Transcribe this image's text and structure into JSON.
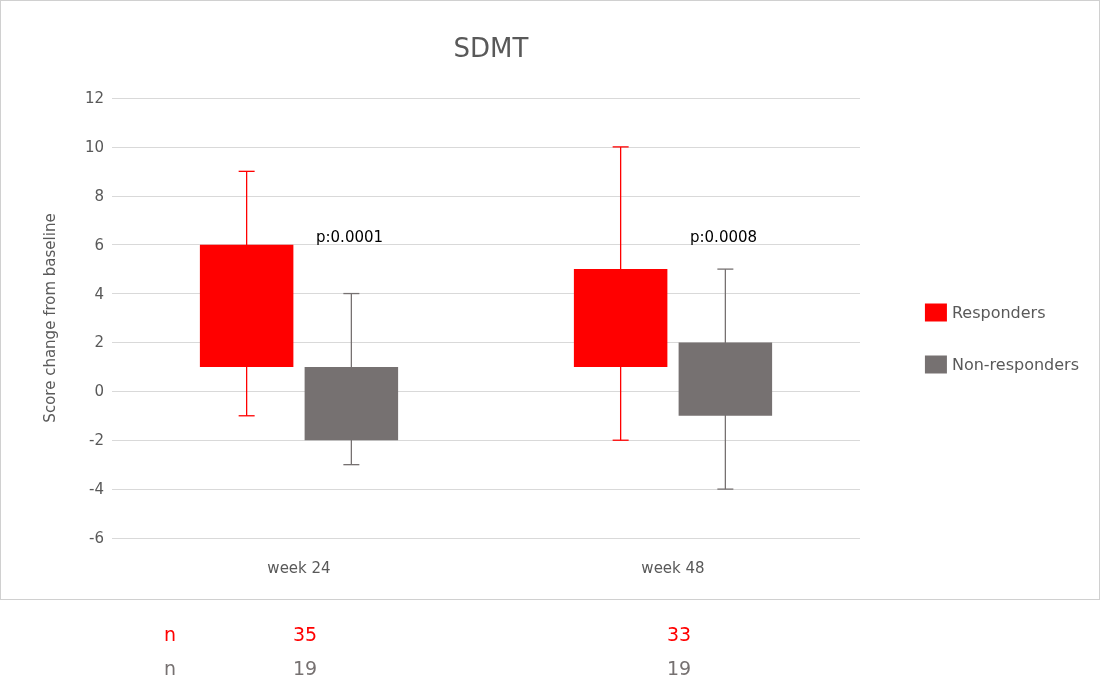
{
  "chart_data": {
    "type": "bar",
    "title": "SDMT",
    "ylabel": "Score change from baseline",
    "categories": [
      "week 24",
      "week 48"
    ],
    "series": [
      {
        "name": "Responders",
        "color": "#ff0000",
        "base": [
          1,
          1
        ],
        "values": [
          5,
          4
        ],
        "errors": [
          [
            -1,
            9
          ],
          [
            -2,
            10
          ]
        ]
      },
      {
        "name": "Non-responders",
        "color": "#767171",
        "base": [
          -2,
          -1
        ],
        "values": [
          3,
          3
        ],
        "errors": [
          [
            -3,
            4
          ],
          [
            -4,
            5
          ]
        ]
      }
    ],
    "ylim": [
      -6,
      12
    ],
    "yticks": [
      -6,
      -4,
      -2,
      0,
      2,
      4,
      6,
      8,
      10,
      12
    ],
    "grid": "y",
    "legend": "right",
    "annotations": [
      "p:0.0001",
      "p:0.0008",
      "n",
      "35",
      "33",
      "n",
      "19",
      "19"
    ]
  }
}
